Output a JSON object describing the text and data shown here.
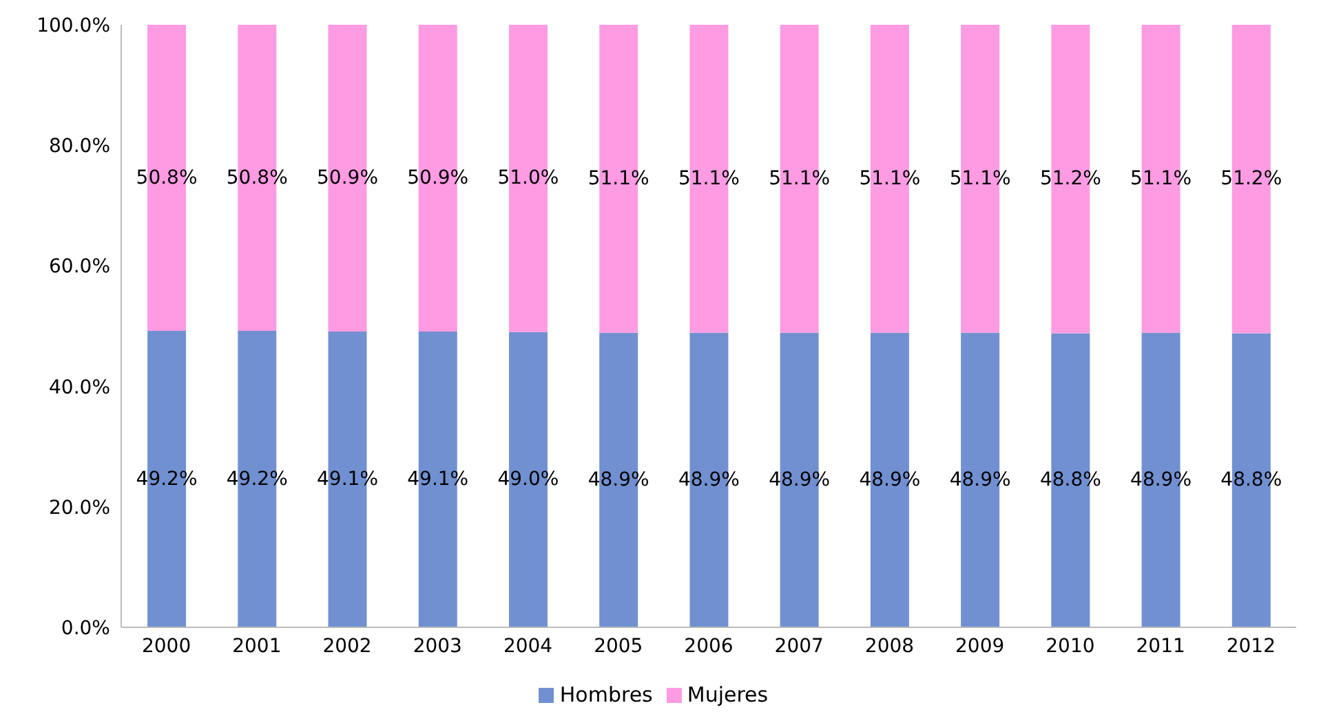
{
  "chart_data": {
    "type": "bar",
    "stacked": true,
    "categories": [
      "2000",
      "2001",
      "2002",
      "2003",
      "2004",
      "2005",
      "2006",
      "2007",
      "2008",
      "2009",
      "2010",
      "2011",
      "2012"
    ],
    "series": [
      {
        "name": "Hombres",
        "color": "#7190d2",
        "values": [
          49.2,
          49.2,
          49.1,
          49.1,
          49.0,
          48.9,
          48.9,
          48.9,
          48.9,
          48.9,
          48.8,
          48.9,
          48.8
        ],
        "value_labels": [
          "49.2%",
          "49.2%",
          "49.1%",
          "49.1%",
          "49.0%",
          "48.9%",
          "48.9%",
          "48.9%",
          "48.9%",
          "48.9%",
          "48.8%",
          "48.9%",
          "48.8%"
        ]
      },
      {
        "name": "Mujeres",
        "color": "#ff9be3",
        "values": [
          50.8,
          50.8,
          50.9,
          50.9,
          51.0,
          51.1,
          51.1,
          51.1,
          51.1,
          51.1,
          51.2,
          51.1,
          51.2
        ],
        "value_labels": [
          "50.8%",
          "50.8%",
          "50.9%",
          "50.9%",
          "51.0%",
          "51.1%",
          "51.1%",
          "51.1%",
          "51.1%",
          "51.1%",
          "51.2%",
          "51.1%",
          "51.2%"
        ]
      }
    ],
    "ylim": [
      0,
      100
    ],
    "yticks": [
      {
        "value": 0,
        "label": "0.0%"
      },
      {
        "value": 20,
        "label": "20.0%"
      },
      {
        "value": 40,
        "label": "40.0%"
      },
      {
        "value": 60,
        "label": "60.0%"
      },
      {
        "value": 80,
        "label": "80.0%"
      },
      {
        "value": 100,
        "label": "100.0%"
      }
    ],
    "grid": false,
    "legend": "bottom"
  }
}
